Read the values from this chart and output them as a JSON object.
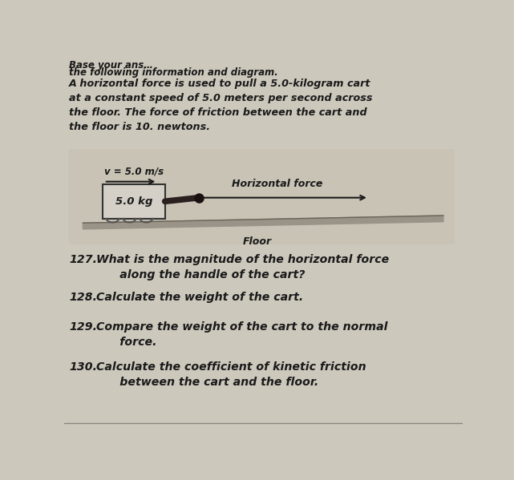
{
  "background_color": "#cdc8bc",
  "text_color": "#1a1a1a",
  "header_line1": "Base your ans…",
  "header_line2": "the following information and diagram.",
  "paragraph": "A horizontal force is used to pull a 5.0-kilogram cart\nat a constant speed of 5.0 meters per second across\nthe floor. The force of friction between the cart and\nthe floor is 10. newtons.",
  "velocity_label": "v = 5.0 m/s",
  "mass_label": "5.0 kg",
  "force_label": "Horizontal force",
  "floor_label": "Floor",
  "q127_num": "127.",
  "q127_text": " What is the magnitude of the horizontal force\n   along the handle of the cart?",
  "q128_num": "128.",
  "q128_text": " Calculate the weight of the cart.",
  "q129_num": "129.",
  "q129_text": " Compare the weight of the cart to the normal\n   force.",
  "q130_num": "130.",
  "q130_text": " Calculate the coefficient of kinetic friction\n   between the cart and the floor.",
  "cart_facecolor": "#d4d0c8",
  "cart_edgecolor": "#333333",
  "floor_color": "#9a9488",
  "floor_edge": "#6a6458",
  "handle_color": "#2a2020",
  "diagram_bg": "#c8c3b5"
}
